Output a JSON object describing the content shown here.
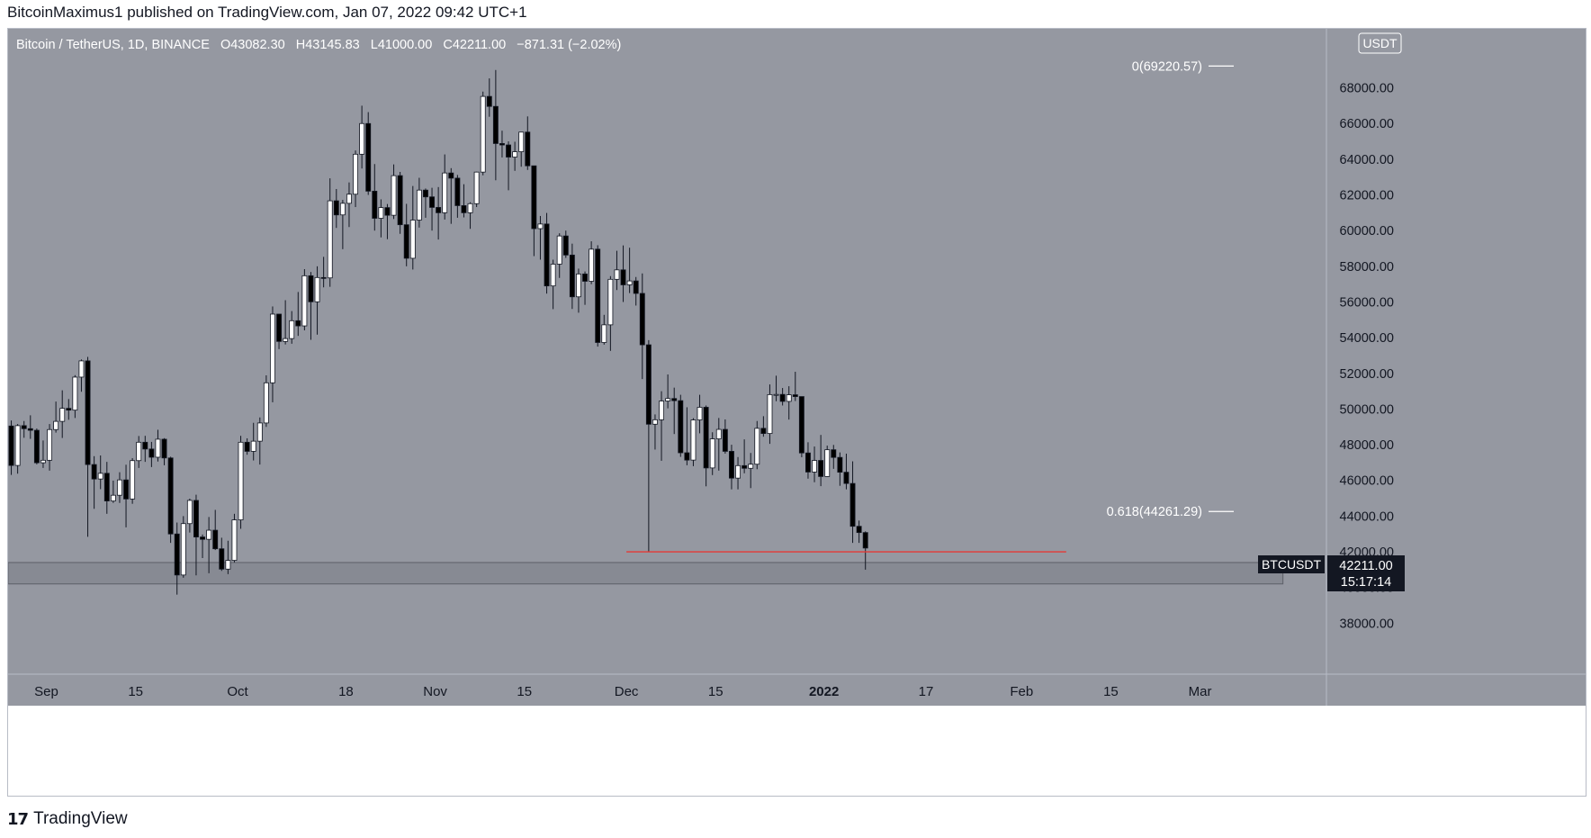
{
  "header": {
    "publisher_line": "BitcoinMaximus1 published on TradingView.com, Jan 07, 2022 09:42 UTC+1"
  },
  "footer": {
    "brand": "TradingView",
    "logo_icon": "tradingview-logo-icon"
  },
  "legend": {
    "symbol": "Bitcoin / TetherUS, 1D, BINANCE",
    "o_label": "O",
    "o_value": "43082.30",
    "h_label": "H",
    "h_value": "43145.83",
    "l_label": "L",
    "l_value": "41000.00",
    "c_label": "C",
    "c_value": "42211.00",
    "change": "−871.31 (−2.02%)"
  },
  "price_scale": {
    "currency": "USDT",
    "last_price_tag": "42211.00",
    "countdown": "15:17:14",
    "symbol_tag": "BTCUSDT"
  },
  "chart_data": {
    "type": "candlestick",
    "title": "Bitcoin / TetherUS, 1D, BINANCE",
    "ylim": [
      36000,
      70300
    ],
    "y_ticks": [
      38000,
      40000,
      42000,
      44000,
      46000,
      48000,
      50000,
      52000,
      54000,
      56000,
      58000,
      60000,
      62000,
      64000,
      66000,
      68000
    ],
    "y_tick_labels": [
      "38000.00",
      "40000.00",
      "42000.00",
      "44000.00",
      "46000.00",
      "48000.00",
      "50000.00",
      "52000.00",
      "54000.00",
      "56000.00",
      "58000.00",
      "60000.00",
      "62000.00",
      "64000.00",
      "66000.00",
      "68000.00"
    ],
    "x_axis_dates": [
      "Sep",
      "15",
      "Oct",
      "18",
      "Nov",
      "15",
      "Dec",
      "15",
      "2022",
      "17",
      "Feb",
      "15",
      "Mar"
    ],
    "x_axis_bold": [
      "2022"
    ],
    "x_range": {
      "start": "2021-08-26",
      "end": "2022-03-18"
    },
    "x_tick_dates": [
      "2021-09-01",
      "2021-09-15",
      "2021-10-01",
      "2021-10-18",
      "2021-11-01",
      "2021-11-15",
      "2021-12-01",
      "2021-12-15",
      "2022-01-01",
      "2022-01-17",
      "2022-02-01",
      "2022-02-15",
      "2022-03-01"
    ],
    "candles": [
      {
        "date": "2021-08-26",
        "o": 49050,
        "h": 49360,
        "l": 46310,
        "c": 46840
      },
      {
        "date": "2021-08-27",
        "o": 46840,
        "h": 49160,
        "l": 46380,
        "c": 49070
      },
      {
        "date": "2021-08-28",
        "o": 49070,
        "h": 49330,
        "l": 48390,
        "c": 48900
      },
      {
        "date": "2021-08-29",
        "o": 48900,
        "h": 49650,
        "l": 48330,
        "c": 48810
      },
      {
        "date": "2021-08-30",
        "o": 48810,
        "h": 48910,
        "l": 46900,
        "c": 46990
      },
      {
        "date": "2021-08-31",
        "o": 46990,
        "h": 48240,
        "l": 46700,
        "c": 47130
      },
      {
        "date": "2021-09-01",
        "o": 47130,
        "h": 49160,
        "l": 46550,
        "c": 48850
      },
      {
        "date": "2021-09-02",
        "o": 48850,
        "h": 50420,
        "l": 48680,
        "c": 49310
      },
      {
        "date": "2021-09-03",
        "o": 49310,
        "h": 51050,
        "l": 48380,
        "c": 50040
      },
      {
        "date": "2021-09-04",
        "o": 50040,
        "h": 50560,
        "l": 49400,
        "c": 49940
      },
      {
        "date": "2021-09-05",
        "o": 49940,
        "h": 51900,
        "l": 49500,
        "c": 51790
      },
      {
        "date": "2021-09-06",
        "o": 51790,
        "h": 52780,
        "l": 50970,
        "c": 52700
      },
      {
        "date": "2021-09-07",
        "o": 52700,
        "h": 52920,
        "l": 42840,
        "c": 46890
      },
      {
        "date": "2021-09-08",
        "o": 46890,
        "h": 47360,
        "l": 44410,
        "c": 46080
      },
      {
        "date": "2021-09-09",
        "o": 46080,
        "h": 47400,
        "l": 45510,
        "c": 46400
      },
      {
        "date": "2021-09-10",
        "o": 46400,
        "h": 47040,
        "l": 44130,
        "c": 44850
      },
      {
        "date": "2021-09-11",
        "o": 44850,
        "h": 45990,
        "l": 44740,
        "c": 45170
      },
      {
        "date": "2021-09-12",
        "o": 45170,
        "h": 46460,
        "l": 44740,
        "c": 46030
      },
      {
        "date": "2021-09-13",
        "o": 46030,
        "h": 46880,
        "l": 43370,
        "c": 44960
      },
      {
        "date": "2021-09-14",
        "o": 44960,
        "h": 47250,
        "l": 44690,
        "c": 47110
      },
      {
        "date": "2021-09-15",
        "o": 47110,
        "h": 48490,
        "l": 46700,
        "c": 48140
      },
      {
        "date": "2021-09-16",
        "o": 48140,
        "h": 48500,
        "l": 47040,
        "c": 47760
      },
      {
        "date": "2021-09-17",
        "o": 47760,
        "h": 48160,
        "l": 46750,
        "c": 47300
      },
      {
        "date": "2021-09-18",
        "o": 47300,
        "h": 48840,
        "l": 47060,
        "c": 48310
      },
      {
        "date": "2021-09-19",
        "o": 48310,
        "h": 48370,
        "l": 46850,
        "c": 47260
      },
      {
        "date": "2021-09-20",
        "o": 47260,
        "h": 47330,
        "l": 42500,
        "c": 43000
      },
      {
        "date": "2021-09-21",
        "o": 43000,
        "h": 43640,
        "l": 39600,
        "c": 40700
      },
      {
        "date": "2021-09-22",
        "o": 40700,
        "h": 44000,
        "l": 40550,
        "c": 43580
      },
      {
        "date": "2021-09-23",
        "o": 43580,
        "h": 44980,
        "l": 43080,
        "c": 44880
      },
      {
        "date": "2021-09-24",
        "o": 44880,
        "h": 45200,
        "l": 40680,
        "c": 42830
      },
      {
        "date": "2021-09-25",
        "o": 42830,
        "h": 42970,
        "l": 41650,
        "c": 42700
      },
      {
        "date": "2021-09-26",
        "o": 42700,
        "h": 43950,
        "l": 40800,
        "c": 43210
      },
      {
        "date": "2021-09-27",
        "o": 43210,
        "h": 44350,
        "l": 42100,
        "c": 42170
      },
      {
        "date": "2021-09-28",
        "o": 42170,
        "h": 42790,
        "l": 40930,
        "c": 41030
      },
      {
        "date": "2021-09-29",
        "o": 41030,
        "h": 42620,
        "l": 40750,
        "c": 41520
      },
      {
        "date": "2021-09-30",
        "o": 41520,
        "h": 44130,
        "l": 41410,
        "c": 43790
      },
      {
        "date": "2021-10-01",
        "o": 43790,
        "h": 48500,
        "l": 43290,
        "c": 48140
      },
      {
        "date": "2021-10-02",
        "o": 48140,
        "h": 48360,
        "l": 47440,
        "c": 47630
      },
      {
        "date": "2021-10-03",
        "o": 47630,
        "h": 49230,
        "l": 47120,
        "c": 48200
      },
      {
        "date": "2021-10-04",
        "o": 48200,
        "h": 49530,
        "l": 46890,
        "c": 49220
      },
      {
        "date": "2021-10-05",
        "o": 49220,
        "h": 51890,
        "l": 49000,
        "c": 51470
      },
      {
        "date": "2021-10-06",
        "o": 51470,
        "h": 55750,
        "l": 50380,
        "c": 55320
      },
      {
        "date": "2021-10-07",
        "o": 55320,
        "h": 55330,
        "l": 53360,
        "c": 53790
      },
      {
        "date": "2021-10-08",
        "o": 53790,
        "h": 56100,
        "l": 53620,
        "c": 53950
      },
      {
        "date": "2021-10-09",
        "o": 53950,
        "h": 55490,
        "l": 53660,
        "c": 54950
      },
      {
        "date": "2021-10-10",
        "o": 54950,
        "h": 56560,
        "l": 54100,
        "c": 54660
      },
      {
        "date": "2021-10-11",
        "o": 54660,
        "h": 57840,
        "l": 54410,
        "c": 57470
      },
      {
        "date": "2021-10-12",
        "o": 57470,
        "h": 57680,
        "l": 53880,
        "c": 56010
      },
      {
        "date": "2021-10-13",
        "o": 56010,
        "h": 58000,
        "l": 54170,
        "c": 57370
      },
      {
        "date": "2021-10-14",
        "o": 57370,
        "h": 58530,
        "l": 56820,
        "c": 57350
      },
      {
        "date": "2021-10-15",
        "o": 57350,
        "h": 62930,
        "l": 56850,
        "c": 61670
      },
      {
        "date": "2021-10-16",
        "o": 61670,
        "h": 62330,
        "l": 60150,
        "c": 60880
      },
      {
        "date": "2021-10-17",
        "o": 60880,
        "h": 61720,
        "l": 58960,
        "c": 61530
      },
      {
        "date": "2021-10-18",
        "o": 61530,
        "h": 62700,
        "l": 60200,
        "c": 62040
      },
      {
        "date": "2021-10-19",
        "o": 62040,
        "h": 64490,
        "l": 61320,
        "c": 64280
      },
      {
        "date": "2021-10-20",
        "o": 64280,
        "h": 67000,
        "l": 63480,
        "c": 66000
      },
      {
        "date": "2021-10-21",
        "o": 66000,
        "h": 66640,
        "l": 62000,
        "c": 62210
      },
      {
        "date": "2021-10-22",
        "o": 62210,
        "h": 63730,
        "l": 60000,
        "c": 60690
      },
      {
        "date": "2021-10-23",
        "o": 60690,
        "h": 61750,
        "l": 59620,
        "c": 61290
      },
      {
        "date": "2021-10-24",
        "o": 61290,
        "h": 61490,
        "l": 59520,
        "c": 60860
      },
      {
        "date": "2021-10-25",
        "o": 60860,
        "h": 63710,
        "l": 60650,
        "c": 63080
      },
      {
        "date": "2021-10-26",
        "o": 63080,
        "h": 63290,
        "l": 59820,
        "c": 60330
      },
      {
        "date": "2021-10-27",
        "o": 60330,
        "h": 61500,
        "l": 58000,
        "c": 58450
      },
      {
        "date": "2021-10-28",
        "o": 58450,
        "h": 62500,
        "l": 57820,
        "c": 60590
      },
      {
        "date": "2021-10-29",
        "o": 60590,
        "h": 62960,
        "l": 60170,
        "c": 62270
      },
      {
        "date": "2021-10-30",
        "o": 62270,
        "h": 62360,
        "l": 60720,
        "c": 61890
      },
      {
        "date": "2021-10-31",
        "o": 61890,
        "h": 62400,
        "l": 60000,
        "c": 61300
      },
      {
        "date": "2021-11-01",
        "o": 61300,
        "h": 62440,
        "l": 59500,
        "c": 61000
      },
      {
        "date": "2021-11-02",
        "o": 61000,
        "h": 64270,
        "l": 60620,
        "c": 63230
      },
      {
        "date": "2021-11-03",
        "o": 63230,
        "h": 63500,
        "l": 60380,
        "c": 62940
      },
      {
        "date": "2021-11-04",
        "o": 62940,
        "h": 63120,
        "l": 60720,
        "c": 61400
      },
      {
        "date": "2021-11-05",
        "o": 61400,
        "h": 62600,
        "l": 60740,
        "c": 61000
      },
      {
        "date": "2021-11-06",
        "o": 61000,
        "h": 61590,
        "l": 60100,
        "c": 61510
      },
      {
        "date": "2021-11-07",
        "o": 61510,
        "h": 63300,
        "l": 61320,
        "c": 63280
      },
      {
        "date": "2021-11-08",
        "o": 63280,
        "h": 67790,
        "l": 63100,
        "c": 67520
      },
      {
        "date": "2021-11-09",
        "o": 67520,
        "h": 68530,
        "l": 66380,
        "c": 66960
      },
      {
        "date": "2021-11-10",
        "o": 66960,
        "h": 69000,
        "l": 62820,
        "c": 64880
      },
      {
        "date": "2021-11-11",
        "o": 64880,
        "h": 65600,
        "l": 64100,
        "c": 64800
      },
      {
        "date": "2021-11-12",
        "o": 64800,
        "h": 65000,
        "l": 62260,
        "c": 64120
      },
      {
        "date": "2021-11-13",
        "o": 64120,
        "h": 64980,
        "l": 63350,
        "c": 64420
      },
      {
        "date": "2021-11-14",
        "o": 64420,
        "h": 65520,
        "l": 63580,
        "c": 65520
      },
      {
        "date": "2021-11-15",
        "o": 65520,
        "h": 66400,
        "l": 63400,
        "c": 63630
      },
      {
        "date": "2021-11-16",
        "o": 63630,
        "h": 63640,
        "l": 58570,
        "c": 60110
      },
      {
        "date": "2021-11-17",
        "o": 60110,
        "h": 60820,
        "l": 58370,
        "c": 60370
      },
      {
        "date": "2021-11-18",
        "o": 60370,
        "h": 60990,
        "l": 56470,
        "c": 56900
      },
      {
        "date": "2021-11-19",
        "o": 56900,
        "h": 58370,
        "l": 55600,
        "c": 58120
      },
      {
        "date": "2021-11-20",
        "o": 58120,
        "h": 59850,
        "l": 57350,
        "c": 59700
      },
      {
        "date": "2021-11-21",
        "o": 59700,
        "h": 60000,
        "l": 58470,
        "c": 58630
      },
      {
        "date": "2021-11-22",
        "o": 58630,
        "h": 59270,
        "l": 55610,
        "c": 56290
      },
      {
        "date": "2021-11-23",
        "o": 56290,
        "h": 57870,
        "l": 55400,
        "c": 57570
      },
      {
        "date": "2021-11-24",
        "o": 57570,
        "h": 57710,
        "l": 55840,
        "c": 57160
      },
      {
        "date": "2021-11-25",
        "o": 57160,
        "h": 59400,
        "l": 57000,
        "c": 58960
      },
      {
        "date": "2021-11-26",
        "o": 58960,
        "h": 59180,
        "l": 53500,
        "c": 53730
      },
      {
        "date": "2021-11-27",
        "o": 53730,
        "h": 55280,
        "l": 53610,
        "c": 54720
      },
      {
        "date": "2021-11-28",
        "o": 54720,
        "h": 57450,
        "l": 53260,
        "c": 57270
      },
      {
        "date": "2021-11-29",
        "o": 57270,
        "h": 58870,
        "l": 56670,
        "c": 57800
      },
      {
        "date": "2021-11-30",
        "o": 57800,
        "h": 59170,
        "l": 56000,
        "c": 56960
      },
      {
        "date": "2021-12-01",
        "o": 56960,
        "h": 59040,
        "l": 56500,
        "c": 57180
      },
      {
        "date": "2021-12-02",
        "o": 57180,
        "h": 57400,
        "l": 55800,
        "c": 56480
      },
      {
        "date": "2021-12-03",
        "o": 56480,
        "h": 57600,
        "l": 51680,
        "c": 53600
      },
      {
        "date": "2021-12-04",
        "o": 53600,
        "h": 53860,
        "l": 42000,
        "c": 49150
      },
      {
        "date": "2021-12-05",
        "o": 49150,
        "h": 49700,
        "l": 47730,
        "c": 49400
      },
      {
        "date": "2021-12-06",
        "o": 49400,
        "h": 51000,
        "l": 47100,
        "c": 50450
      },
      {
        "date": "2021-12-07",
        "o": 50450,
        "h": 51940,
        "l": 50040,
        "c": 50590
      },
      {
        "date": "2021-12-08",
        "o": 50590,
        "h": 51200,
        "l": 48600,
        "c": 50470
      },
      {
        "date": "2021-12-09",
        "o": 50470,
        "h": 50800,
        "l": 47320,
        "c": 47550
      },
      {
        "date": "2021-12-10",
        "o": 47550,
        "h": 50100,
        "l": 46850,
        "c": 47140
      },
      {
        "date": "2021-12-11",
        "o": 47140,
        "h": 49490,
        "l": 46800,
        "c": 49390
      },
      {
        "date": "2021-12-12",
        "o": 49390,
        "h": 50800,
        "l": 48640,
        "c": 50100
      },
      {
        "date": "2021-12-13",
        "o": 50100,
        "h": 50200,
        "l": 45670,
        "c": 46700
      },
      {
        "date": "2021-12-14",
        "o": 46700,
        "h": 48700,
        "l": 46300,
        "c": 48330
      },
      {
        "date": "2021-12-15",
        "o": 48330,
        "h": 49500,
        "l": 46550,
        "c": 48860
      },
      {
        "date": "2021-12-16",
        "o": 48860,
        "h": 49420,
        "l": 47500,
        "c": 47630
      },
      {
        "date": "2021-12-17",
        "o": 47630,
        "h": 48000,
        "l": 45500,
        "c": 46130
      },
      {
        "date": "2021-12-18",
        "o": 46130,
        "h": 47310,
        "l": 45500,
        "c": 46830
      },
      {
        "date": "2021-12-19",
        "o": 46830,
        "h": 48300,
        "l": 46400,
        "c": 46680
      },
      {
        "date": "2021-12-20",
        "o": 46680,
        "h": 47540,
        "l": 45570,
        "c": 46910
      },
      {
        "date": "2021-12-21",
        "o": 46910,
        "h": 49330,
        "l": 46630,
        "c": 48920
      },
      {
        "date": "2021-12-22",
        "o": 48920,
        "h": 49600,
        "l": 48450,
        "c": 48630
      },
      {
        "date": "2021-12-23",
        "o": 48630,
        "h": 51380,
        "l": 48050,
        "c": 50810
      },
      {
        "date": "2021-12-24",
        "o": 50810,
        "h": 51870,
        "l": 50440,
        "c": 50820
      },
      {
        "date": "2021-12-25",
        "o": 50820,
        "h": 51180,
        "l": 50200,
        "c": 50430
      },
      {
        "date": "2021-12-26",
        "o": 50430,
        "h": 51280,
        "l": 49410,
        "c": 50800
      },
      {
        "date": "2021-12-27",
        "o": 50800,
        "h": 52090,
        "l": 50450,
        "c": 50700
      },
      {
        "date": "2021-12-28",
        "o": 50700,
        "h": 50700,
        "l": 47300,
        "c": 47540
      },
      {
        "date": "2021-12-29",
        "o": 47540,
        "h": 48140,
        "l": 46100,
        "c": 46470
      },
      {
        "date": "2021-12-30",
        "o": 46470,
        "h": 47900,
        "l": 45900,
        "c": 47120
      },
      {
        "date": "2021-12-31",
        "o": 47120,
        "h": 48550,
        "l": 45680,
        "c": 46220
      },
      {
        "date": "2022-01-01",
        "o": 46220,
        "h": 47950,
        "l": 46200,
        "c": 47720
      },
      {
        "date": "2022-01-02",
        "o": 47720,
        "h": 47990,
        "l": 46650,
        "c": 47290
      },
      {
        "date": "2022-01-03",
        "o": 47290,
        "h": 47570,
        "l": 45700,
        "c": 46460
      },
      {
        "date": "2022-01-04",
        "o": 46460,
        "h": 47500,
        "l": 45500,
        "c": 45830
      },
      {
        "date": "2022-01-05",
        "o": 45830,
        "h": 47070,
        "l": 42500,
        "c": 43430
      },
      {
        "date": "2022-01-06",
        "o": 43430,
        "h": 43750,
        "l": 42500,
        "c": 43080
      },
      {
        "date": "2022-01-07",
        "o": 43080,
        "h": 43146,
        "l": 41000,
        "c": 42211
      }
    ],
    "fib_levels": [
      {
        "label": "0(69220.57)",
        "value": 69220.57
      },
      {
        "label": "0.618(44261.29)",
        "value": 44261.29
      }
    ],
    "support_line": {
      "value": 42000,
      "start": "2021-12-01",
      "end": "2022-02-08",
      "color": "#e53935"
    },
    "support_zone": {
      "low": 40200,
      "high": 41400,
      "start": "2021-08-26",
      "end": "2022-03-14"
    },
    "colors": {
      "background": "#9598a1",
      "bull": "#ffffff",
      "bear": "#000000",
      "wick": "#131722",
      "scale_text": "#131722",
      "support_line": "#e53935",
      "last_price_tag": "#131722"
    }
  }
}
